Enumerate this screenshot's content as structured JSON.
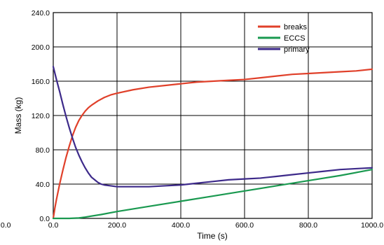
{
  "chart_data": {
    "type": "line",
    "title": "",
    "xlabel": "Time (s)",
    "ylabel": "Mass (kg)",
    "xlim": [
      0,
      1000
    ],
    "ylim": [
      0,
      240
    ],
    "grid": true,
    "legend_position": "top-right",
    "x_ticks": [
      {
        "value": 0,
        "label": "0.0"
      },
      {
        "value": 200,
        "label": "200.0"
      },
      {
        "value": 400,
        "label": "400.0"
      },
      {
        "value": 600,
        "label": "600.0"
      },
      {
        "value": 800,
        "label": "800.0"
      },
      {
        "value": 1000,
        "label": "1000.0"
      }
    ],
    "y_ticks": [
      {
        "value": 0,
        "label": "0.0"
      },
      {
        "value": 40,
        "label": "40.0"
      },
      {
        "value": 80,
        "label": "80.0"
      },
      {
        "value": 120,
        "label": "120.0"
      },
      {
        "value": 160,
        "label": "160.0"
      },
      {
        "value": 200,
        "label": "200.0"
      },
      {
        "value": 240,
        "label": "240.0"
      }
    ],
    "extra_labels": [
      {
        "text": "0.0",
        "x_value": -165,
        "y_value": -7
      }
    ],
    "series": [
      {
        "name": "breaks",
        "color": "#e0402a",
        "x": [
          0,
          5,
          10,
          20,
          30,
          40,
          50,
          60,
          70,
          80,
          90,
          100,
          110,
          120,
          140,
          160,
          180,
          200,
          250,
          300,
          350,
          400,
          450,
          500,
          550,
          600,
          650,
          700,
          750,
          800,
          850,
          900,
          950,
          1000
        ],
        "y": [
          0,
          12,
          22,
          40,
          56,
          71,
          84,
          96,
          106,
          114,
          120,
          125,
          129,
          132,
          137,
          141,
          144,
          146,
          150,
          153,
          155,
          157,
          159,
          160,
          161,
          162,
          164,
          166,
          168,
          169,
          170,
          171,
          172,
          174
        ]
      },
      {
        "name": "ECCS",
        "color": "#1a9950",
        "x": [
          0,
          50,
          80,
          100,
          150,
          200,
          300,
          400,
          500,
          600,
          700,
          800,
          900,
          1000
        ],
        "y": [
          0,
          0,
          0.5,
          1.5,
          4.5,
          8,
          14,
          20,
          26,
          32,
          38,
          44,
          50,
          57
        ]
      },
      {
        "name": "primary",
        "color": "#3d2a8a",
        "x": [
          0,
          10,
          20,
          30,
          40,
          50,
          60,
          70,
          80,
          90,
          100,
          110,
          120,
          130,
          140,
          150,
          160,
          180,
          200,
          250,
          300,
          350,
          400,
          450,
          500,
          550,
          600,
          650,
          700,
          750,
          800,
          850,
          900,
          950,
          1000
        ],
        "y": [
          177,
          162,
          148,
          133,
          119,
          106,
          94,
          83,
          74,
          66,
          59,
          53,
          48,
          45,
          42,
          40,
          39,
          38,
          37,
          37,
          37,
          38,
          39,
          41,
          43,
          45,
          46,
          47,
          49,
          51,
          53,
          55,
          57,
          58,
          59
        ]
      }
    ]
  }
}
